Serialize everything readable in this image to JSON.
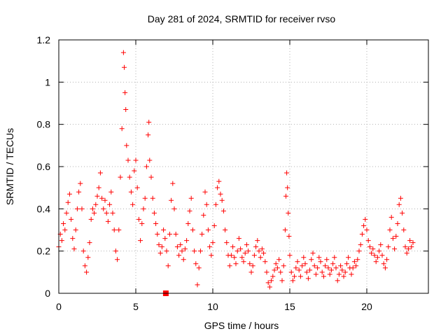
{
  "chart_data": {
    "type": "scatter",
    "title": "Day 281 of 2024, SRMTID for receiver rvso",
    "xlabel": "GPS time / hours",
    "ylabel": "SRMTID / TECUs",
    "xlim": [
      0,
      24
    ],
    "ylim": [
      0,
      1.2
    ],
    "xticks": [
      0,
      5,
      10,
      15,
      20
    ],
    "xtick_labels": [
      "0",
      "5",
      "10",
      "15",
      "20"
    ],
    "yticks": [
      0,
      0.2,
      0.4,
      0.6,
      0.8,
      1.0,
      1.2
    ],
    "ytick_labels": [
      "0",
      "0.2",
      "0.4",
      "0.6",
      "0.8",
      "1",
      "1.2"
    ],
    "grid": true,
    "marker": "plus",
    "color": "#ff0000",
    "series": [
      {
        "name": "SRMTID",
        "points": [
          [
            0.0,
            0.22
          ],
          [
            0.1,
            0.28
          ],
          [
            0.2,
            0.25
          ],
          [
            0.3,
            0.33
          ],
          [
            0.4,
            0.3
          ],
          [
            0.5,
            0.38
          ],
          [
            0.6,
            0.43
          ],
          [
            0.7,
            0.47
          ],
          [
            0.8,
            0.35
          ],
          [
            0.9,
            0.26
          ],
          [
            1.0,
            0.21
          ],
          [
            1.1,
            0.3
          ],
          [
            1.2,
            0.4
          ],
          [
            1.3,
            0.48
          ],
          [
            1.4,
            0.52
          ],
          [
            1.5,
            0.4
          ],
          [
            1.6,
            0.2
          ],
          [
            1.7,
            0.13
          ],
          [
            1.8,
            0.1
          ],
          [
            1.9,
            0.17
          ],
          [
            2.0,
            0.24
          ],
          [
            2.1,
            0.35
          ],
          [
            2.2,
            0.4
          ],
          [
            2.3,
            0.38
          ],
          [
            2.4,
            0.42
          ],
          [
            2.5,
            0.46
          ],
          [
            2.6,
            0.5
          ],
          [
            2.7,
            0.57
          ],
          [
            2.8,
            0.45
          ],
          [
            2.9,
            0.4
          ],
          [
            3.0,
            0.44
          ],
          [
            3.1,
            0.38
          ],
          [
            3.2,
            0.34
          ],
          [
            3.3,
            0.42
          ],
          [
            3.4,
            0.48
          ],
          [
            3.5,
            0.38
          ],
          [
            3.6,
            0.3
          ],
          [
            3.7,
            0.2
          ],
          [
            3.8,
            0.16
          ],
          [
            3.9,
            0.3
          ],
          [
            4.0,
            0.55
          ],
          [
            4.1,
            0.78
          ],
          [
            4.2,
            1.14
          ],
          [
            4.25,
            1.07
          ],
          [
            4.3,
            0.95
          ],
          [
            4.35,
            0.87
          ],
          [
            4.4,
            0.7
          ],
          [
            4.5,
            0.63
          ],
          [
            4.6,
            0.55
          ],
          [
            4.7,
            0.48
          ],
          [
            4.8,
            0.42
          ],
          [
            4.9,
            0.58
          ],
          [
            5.0,
            0.63
          ],
          [
            5.1,
            0.5
          ],
          [
            5.2,
            0.35
          ],
          [
            5.3,
            0.25
          ],
          [
            5.4,
            0.33
          ],
          [
            5.5,
            0.4
          ],
          [
            5.6,
            0.45
          ],
          [
            5.7,
            0.6
          ],
          [
            5.8,
            0.75
          ],
          [
            5.85,
            0.81
          ],
          [
            5.9,
            0.63
          ],
          [
            6.0,
            0.55
          ],
          [
            6.1,
            0.45
          ],
          [
            6.2,
            0.38
          ],
          [
            6.3,
            0.33
          ],
          [
            6.4,
            0.28
          ],
          [
            6.5,
            0.23
          ],
          [
            6.6,
            0.19
          ],
          [
            6.7,
            0.22
          ],
          [
            6.8,
            0.3
          ],
          [
            6.9,
            0.26
          ],
          [
            7.0,
            0.2
          ],
          [
            7.1,
            0.13
          ],
          [
            7.2,
            0.28
          ],
          [
            7.3,
            0.44
          ],
          [
            7.4,
            0.52
          ],
          [
            7.5,
            0.4
          ],
          [
            7.6,
            0.28
          ],
          [
            7.7,
            0.22
          ],
          [
            7.8,
            0.18
          ],
          [
            7.9,
            0.23
          ],
          [
            8.0,
            0.2
          ],
          [
            8.1,
            0.16
          ],
          [
            8.2,
            0.21
          ],
          [
            8.3,
            0.25
          ],
          [
            8.4,
            0.33
          ],
          [
            8.5,
            0.39
          ],
          [
            8.6,
            0.45
          ],
          [
            8.7,
            0.3
          ],
          [
            8.8,
            0.2
          ],
          [
            8.9,
            0.14
          ],
          [
            9.0,
            0.04
          ],
          [
            9.1,
            0.12
          ],
          [
            9.2,
            0.2
          ],
          [
            9.3,
            0.28
          ],
          [
            9.4,
            0.37
          ],
          [
            9.5,
            0.48
          ],
          [
            9.6,
            0.42
          ],
          [
            9.7,
            0.3
          ],
          [
            9.8,
            0.22
          ],
          [
            9.9,
            0.18
          ],
          [
            10.0,
            0.24
          ],
          [
            10.1,
            0.32
          ],
          [
            10.2,
            0.42
          ],
          [
            10.3,
            0.5
          ],
          [
            10.4,
            0.53
          ],
          [
            10.5,
            0.47
          ],
          [
            10.6,
            0.44
          ],
          [
            10.7,
            0.39
          ],
          [
            10.8,
            0.3
          ],
          [
            10.9,
            0.24
          ],
          [
            11.0,
            0.18
          ],
          [
            11.1,
            0.13
          ],
          [
            11.2,
            0.18
          ],
          [
            11.3,
            0.22
          ],
          [
            11.4,
            0.17
          ],
          [
            11.5,
            0.14
          ],
          [
            11.6,
            0.2
          ],
          [
            11.7,
            0.26
          ],
          [
            11.8,
            0.21
          ],
          [
            11.9,
            0.17
          ],
          [
            12.0,
            0.15
          ],
          [
            12.1,
            0.19
          ],
          [
            12.2,
            0.23
          ],
          [
            12.3,
            0.2
          ],
          [
            12.4,
            0.14
          ],
          [
            12.5,
            0.1
          ],
          [
            12.6,
            0.13
          ],
          [
            12.7,
            0.18
          ],
          [
            12.8,
            0.22
          ],
          [
            12.9,
            0.25
          ],
          [
            13.0,
            0.2
          ],
          [
            13.1,
            0.17
          ],
          [
            13.2,
            0.21
          ],
          [
            13.3,
            0.19
          ],
          [
            13.4,
            0.15
          ],
          [
            13.5,
            0.1
          ],
          [
            13.6,
            0.05
          ],
          [
            13.7,
            0.03
          ],
          [
            13.8,
            0.06
          ],
          [
            13.9,
            0.08
          ],
          [
            14.0,
            0.11
          ],
          [
            14.1,
            0.14
          ],
          [
            14.2,
            0.12
          ],
          [
            14.3,
            0.16
          ],
          [
            14.4,
            0.1
          ],
          [
            14.5,
            0.06
          ],
          [
            14.6,
            0.13
          ],
          [
            14.7,
            0.3
          ],
          [
            14.75,
            0.46
          ],
          [
            14.8,
            0.57
          ],
          [
            14.85,
            0.5
          ],
          [
            14.9,
            0.38
          ],
          [
            14.95,
            0.27
          ],
          [
            15.0,
            0.18
          ],
          [
            15.1,
            0.1
          ],
          [
            15.2,
            0.06
          ],
          [
            15.3,
            0.08
          ],
          [
            15.4,
            0.12
          ],
          [
            15.5,
            0.15
          ],
          [
            15.6,
            0.11
          ],
          [
            15.7,
            0.08
          ],
          [
            15.8,
            0.13
          ],
          [
            15.9,
            0.17
          ],
          [
            16.0,
            0.14
          ],
          [
            16.1,
            0.1
          ],
          [
            16.2,
            0.07
          ],
          [
            16.3,
            0.11
          ],
          [
            16.4,
            0.16
          ],
          [
            16.5,
            0.19
          ],
          [
            16.6,
            0.13
          ],
          [
            16.7,
            0.09
          ],
          [
            16.8,
            0.12
          ],
          [
            16.9,
            0.17
          ],
          [
            17.0,
            0.15
          ],
          [
            17.1,
            0.1
          ],
          [
            17.2,
            0.08
          ],
          [
            17.3,
            0.13
          ],
          [
            17.4,
            0.16
          ],
          [
            17.5,
            0.12
          ],
          [
            17.6,
            0.09
          ],
          [
            17.7,
            0.11
          ],
          [
            17.8,
            0.14
          ],
          [
            17.9,
            0.17
          ],
          [
            18.0,
            0.12
          ],
          [
            18.1,
            0.06
          ],
          [
            18.2,
            0.09
          ],
          [
            18.3,
            0.13
          ],
          [
            18.4,
            0.11
          ],
          [
            18.5,
            0.08
          ],
          [
            18.6,
            0.1
          ],
          [
            18.7,
            0.14
          ],
          [
            18.8,
            0.17
          ],
          [
            18.9,
            0.12
          ],
          [
            19.0,
            0.09
          ],
          [
            19.1,
            0.12
          ],
          [
            19.2,
            0.15
          ],
          [
            19.3,
            0.13
          ],
          [
            19.4,
            0.16
          ],
          [
            19.5,
            0.2
          ],
          [
            19.6,
            0.23
          ],
          [
            19.7,
            0.28
          ],
          [
            19.8,
            0.32
          ],
          [
            19.9,
            0.35
          ],
          [
            20.0,
            0.3
          ],
          [
            20.1,
            0.25
          ],
          [
            20.2,
            0.22
          ],
          [
            20.3,
            0.19
          ],
          [
            20.4,
            0.21
          ],
          [
            20.5,
            0.18
          ],
          [
            20.6,
            0.15
          ],
          [
            20.7,
            0.17
          ],
          [
            20.8,
            0.2
          ],
          [
            20.9,
            0.23
          ],
          [
            21.0,
            0.18
          ],
          [
            21.1,
            0.14
          ],
          [
            21.2,
            0.12
          ],
          [
            21.3,
            0.16
          ],
          [
            21.4,
            0.22
          ],
          [
            21.5,
            0.3
          ],
          [
            21.6,
            0.36
          ],
          [
            21.7,
            0.26
          ],
          [
            21.8,
            0.21
          ],
          [
            21.9,
            0.27
          ],
          [
            22.0,
            0.33
          ],
          [
            22.1,
            0.42
          ],
          [
            22.2,
            0.45
          ],
          [
            22.3,
            0.38
          ],
          [
            22.4,
            0.3
          ],
          [
            22.5,
            0.22
          ],
          [
            22.6,
            0.19
          ],
          [
            22.7,
            0.21
          ],
          [
            22.8,
            0.25
          ],
          [
            22.9,
            0.22
          ],
          [
            23.0,
            0.24
          ]
        ]
      }
    ],
    "marker_square": {
      "x": 6.95,
      "y": 0.0
    }
  }
}
